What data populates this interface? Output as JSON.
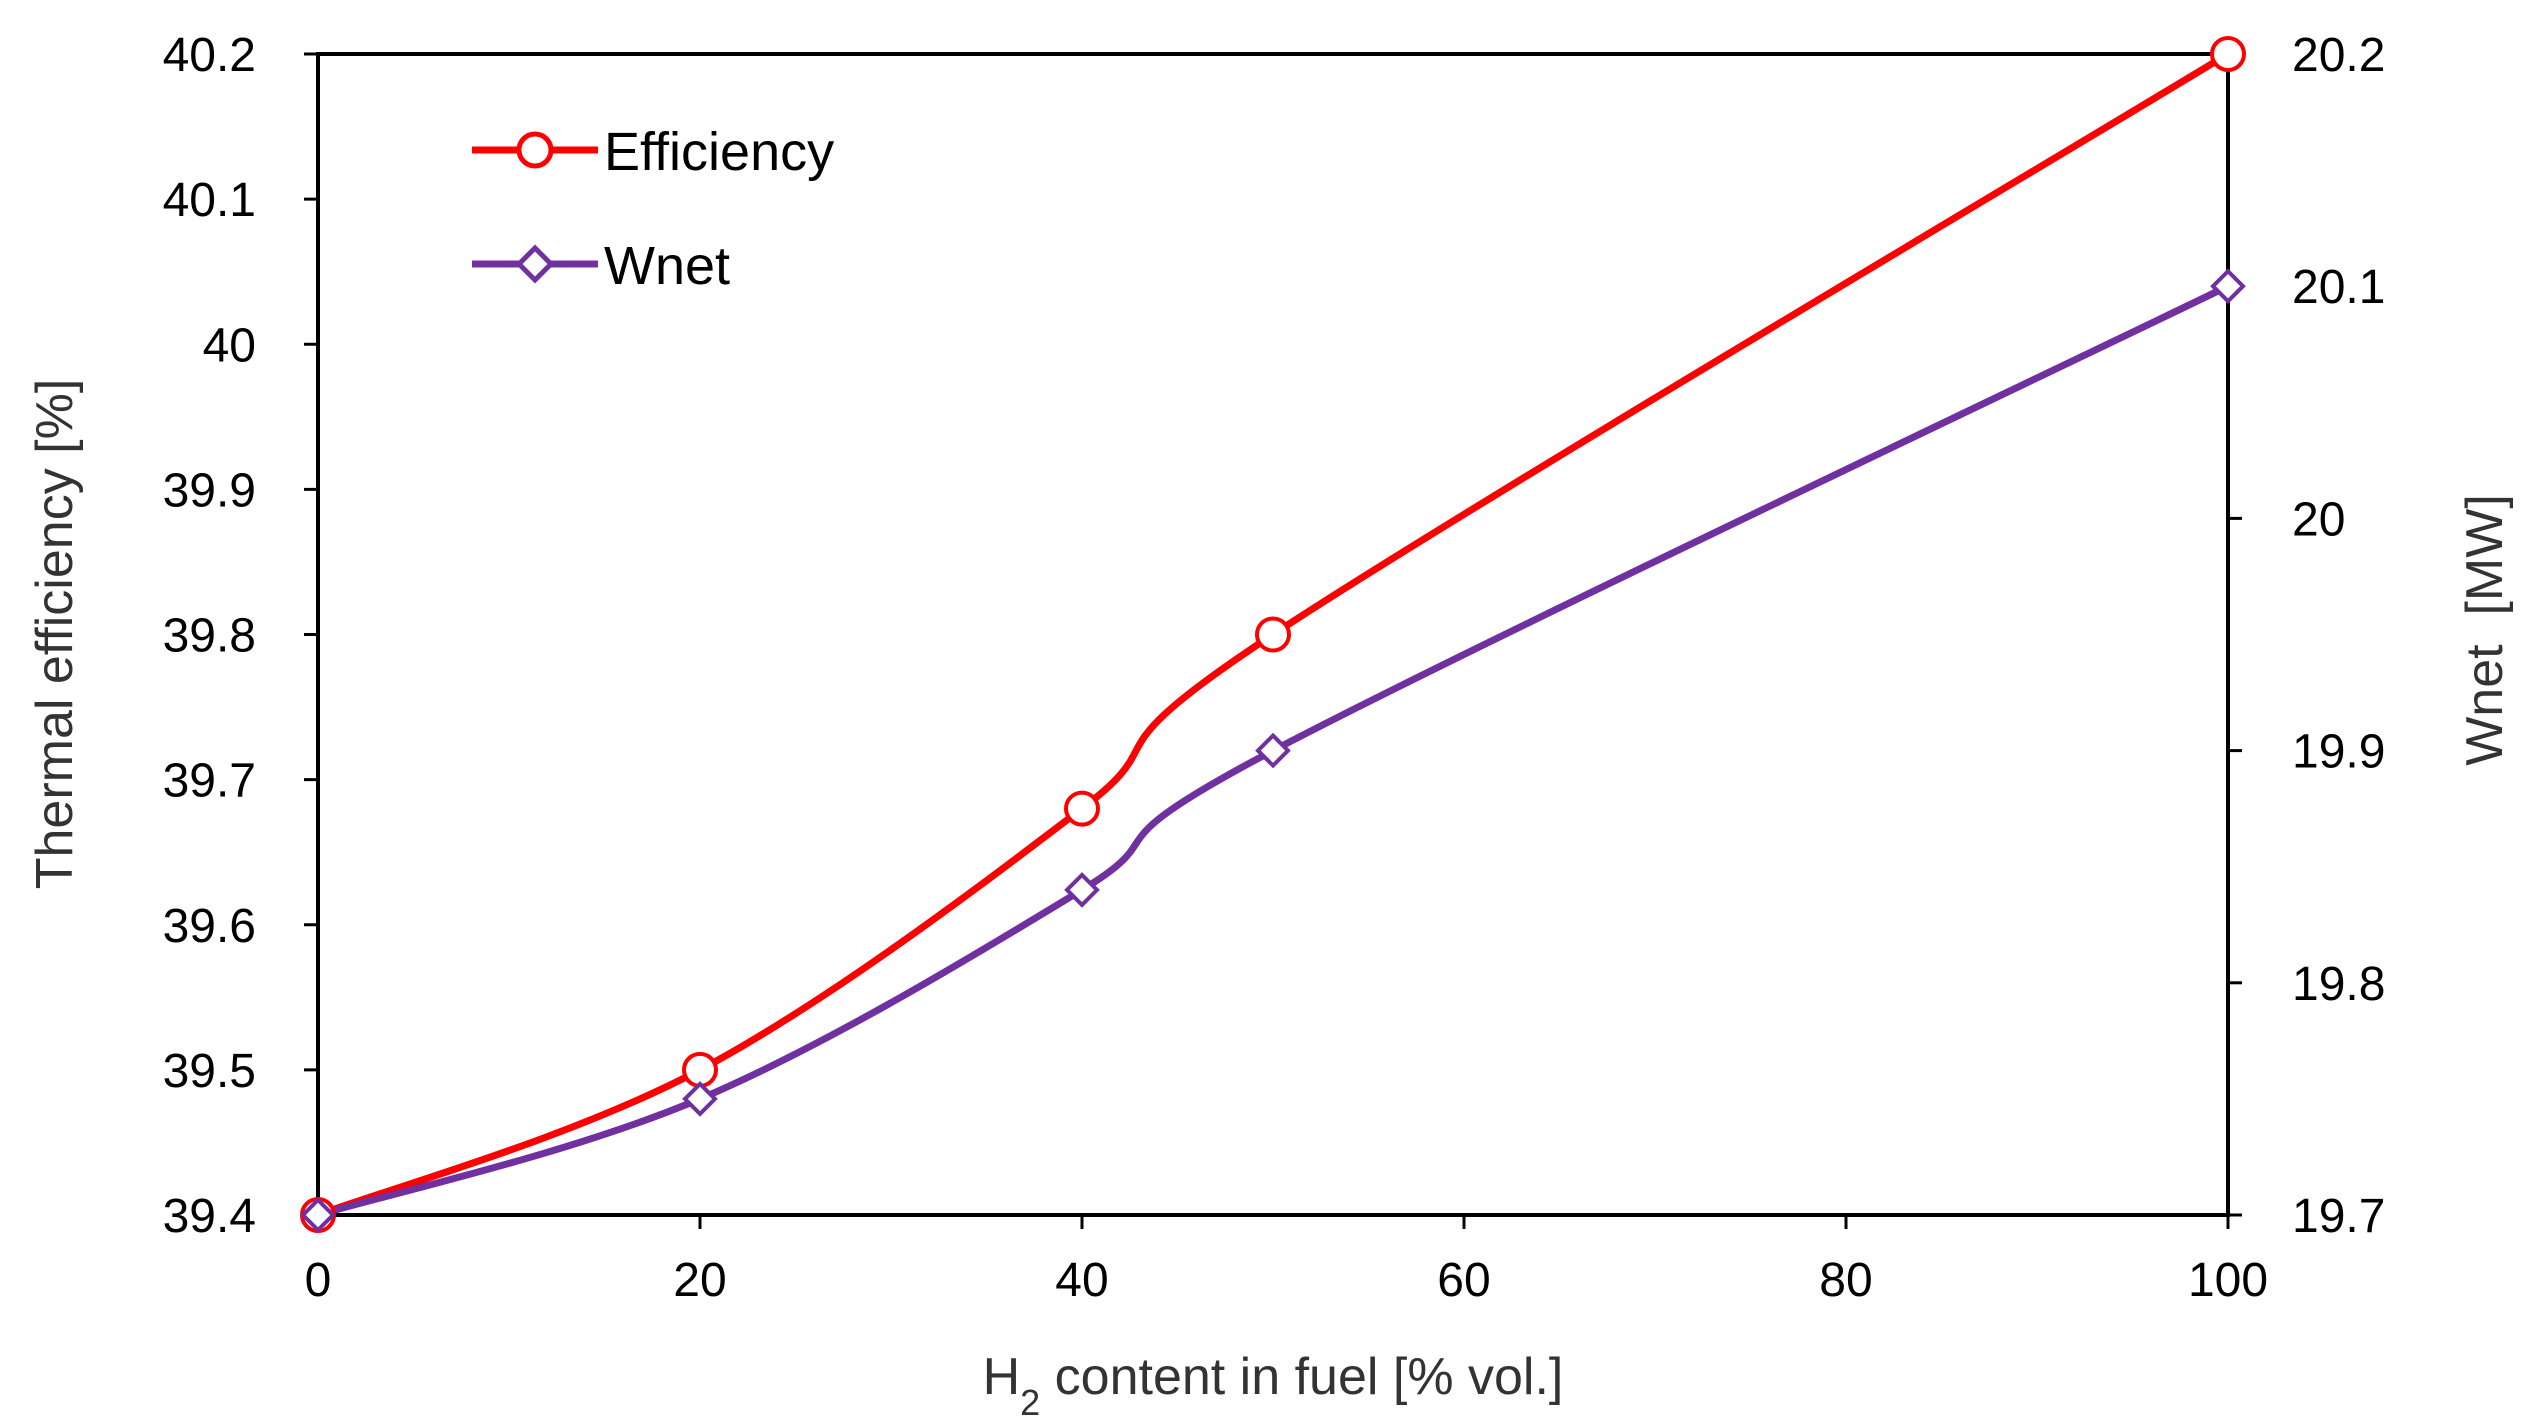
{
  "chart_data": {
    "type": "line",
    "title": "",
    "x": [
      0,
      20,
      40,
      50,
      100
    ],
    "xlabel": {
      "prefix": "H",
      "subscript": "2",
      "suffix": " content in fuel [% vol.]"
    },
    "xlim": [
      0,
      100
    ],
    "xticks": [
      0,
      20,
      40,
      60,
      80,
      100
    ],
    "xtick_labels": [
      "0",
      "20",
      "40",
      "60",
      "80",
      "100"
    ],
    "ylabel_left": "Thermal efficiency [%]",
    "ylim_left": [
      39.4,
      40.2
    ],
    "yticks_left": [
      39.4,
      39.5,
      39.6,
      39.7,
      39.8,
      39.9,
      40,
      40.1,
      40.2
    ],
    "ytick_labels_left": [
      "39.4",
      "39.5",
      "39.6",
      "39.7",
      "39.8",
      "39.9",
      "40",
      "40.1",
      "40.2"
    ],
    "ylabel_right": "Wnet  [MW]",
    "ylim_right": [
      19.7,
      20.2
    ],
    "yticks_right": [
      19.7,
      19.8,
      19.9,
      20,
      20.1,
      20.2
    ],
    "ytick_labels_right": [
      "19.7",
      "19.8",
      "19.9",
      "20",
      "20.1",
      "20.2"
    ],
    "grid": false,
    "legend_position": "top-left",
    "series": [
      {
        "name": "Efficiency",
        "axis": "left",
        "color": "#ff0000",
        "marker": "circle",
        "values": [
          39.4,
          39.5,
          39.68,
          39.8,
          40.2
        ]
      },
      {
        "name": "Wnet",
        "axis": "right",
        "color": "#7030a0",
        "marker": "diamond",
        "values": [
          19.7,
          19.75,
          19.84,
          19.9,
          20.1
        ]
      }
    ]
  }
}
